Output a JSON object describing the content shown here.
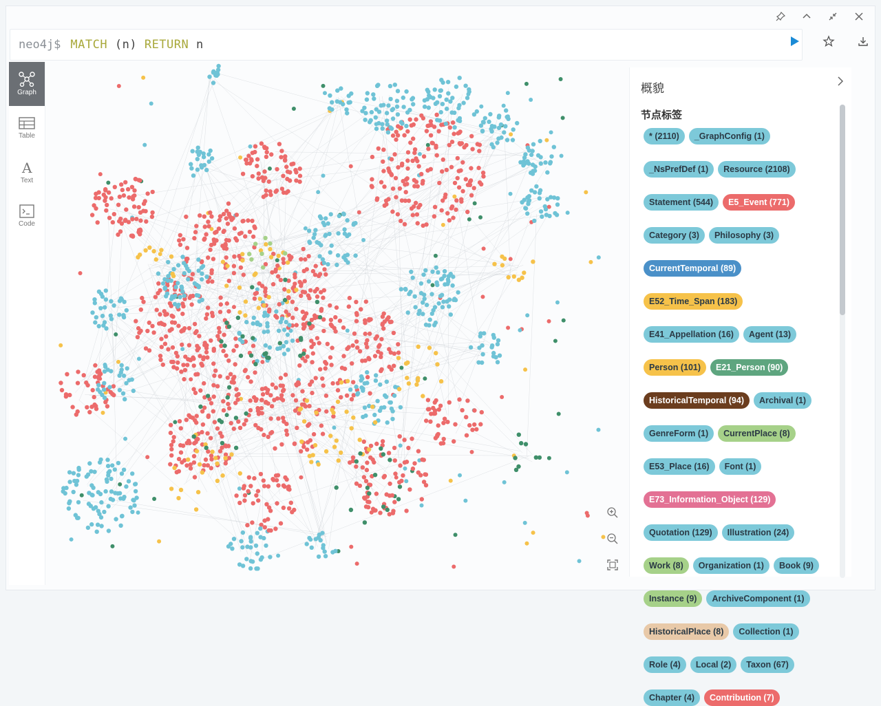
{
  "editor": {
    "prompt": "neo4j$",
    "query_kw1": "MATCH",
    "query_mid": "(n)",
    "query_kw2": "RETURN",
    "query_end": "n"
  },
  "window_icons": [
    "pin-icon",
    "collapse-icon",
    "minimize-icon",
    "close-icon"
  ],
  "editor_actions": [
    "run-icon",
    "star-icon",
    "download-icon"
  ],
  "sidenav": [
    {
      "name": "graph",
      "label": "Graph",
      "active": true
    },
    {
      "name": "table",
      "label": "Table",
      "active": false
    },
    {
      "name": "text",
      "label": "Text",
      "active": false
    },
    {
      "name": "code",
      "label": "Code",
      "active": false
    }
  ],
  "panel": {
    "title": "概貌",
    "subtitle": "节点标签",
    "labels": [
      {
        "text": "* (2110)",
        "color": "#7dc9d9"
      },
      {
        "text": "_GraphConfig (1)",
        "color": "#7dc9d9"
      },
      {
        "text": "_NsPrefDef (1)",
        "color": "#7dc9d9"
      },
      {
        "text": "Resource (2108)",
        "color": "#7dc9d9"
      },
      {
        "text": "Statement (544)",
        "color": "#7dc9d9"
      },
      {
        "text": "E5_Event (771)",
        "color": "#ec6b6b"
      },
      {
        "text": "Category (3)",
        "color": "#7dc9d9"
      },
      {
        "text": "Philosophy (3)",
        "color": "#7dc9d9"
      },
      {
        "text": "CurrentTemporal (89)",
        "color": "#4a90c8"
      },
      {
        "text": "E52_Time_Span (183)",
        "color": "#f6c24a"
      },
      {
        "text": "E41_Appellation (16)",
        "color": "#7dc9d9"
      },
      {
        "text": "Agent (13)",
        "color": "#7dc9d9"
      },
      {
        "text": "Person (101)",
        "color": "#f6c24a"
      },
      {
        "text": "E21_Person (90)",
        "color": "#5ea57f"
      },
      {
        "text": "HistoricalTemporal (94)",
        "color": "#6b3d1e"
      },
      {
        "text": "Archival (1)",
        "color": "#7dc9d9"
      },
      {
        "text": "GenreForm (1)",
        "color": "#7dc9d9"
      },
      {
        "text": "CurrentPlace (8)",
        "color": "#a6d189"
      },
      {
        "text": "E53_Place (16)",
        "color": "#7dc9d9"
      },
      {
        "text": "Font (1)",
        "color": "#7dc9d9"
      },
      {
        "text": "E73_Information_Object (129)",
        "color": "#e37194"
      },
      {
        "text": "Quotation (129)",
        "color": "#7dc9d9"
      },
      {
        "text": "Illustration (24)",
        "color": "#7dc9d9"
      },
      {
        "text": "Work (8)",
        "color": "#a6d189"
      },
      {
        "text": "Organization (1)",
        "color": "#7dc9d9"
      },
      {
        "text": "Book (9)",
        "color": "#7dc9d9"
      },
      {
        "text": "Instance (9)",
        "color": "#a6d189"
      },
      {
        "text": "ArchiveComponent (1)",
        "color": "#7dc9d9"
      },
      {
        "text": "HistoricalPlace (8)",
        "color": "#e8c9a8"
      },
      {
        "text": "Collection (1)",
        "color": "#7dc9d9"
      },
      {
        "text": "Role (4)",
        "color": "#7dc9d9"
      },
      {
        "text": "Local (2)",
        "color": "#7dc9d9"
      },
      {
        "text": "Taxon (67)",
        "color": "#7dc9d9"
      },
      {
        "text": "Chapter (4)",
        "color": "#7dc9d9"
      },
      {
        "text": "Contribution (7)",
        "color": "#ec6b6b"
      }
    ]
  },
  "node_colors": {
    "red": "#ec6b6b",
    "cyan": "#6fc3d6",
    "yellow": "#f6c24a",
    "green": "#3f8f6a",
    "lightgreen": "#a6d189",
    "edge": "#c9ced3"
  }
}
